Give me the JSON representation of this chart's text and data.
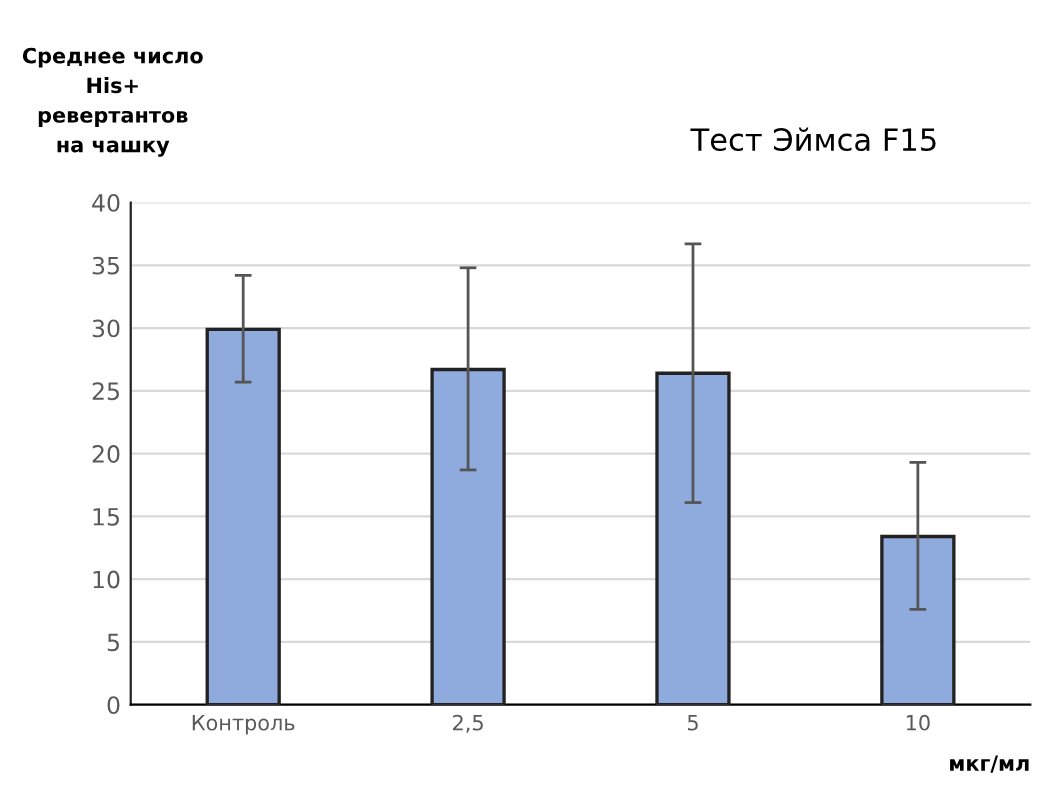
{
  "chart_data": {
    "type": "bar",
    "title": "Тест Эймса F15",
    "ylabel": "Среднее число\nHis+\nревертантов\nна чашку",
    "xlabel": "мкг/мл",
    "categories": [
      "Контроль",
      "2,5",
      "5",
      "10"
    ],
    "values": [
      29.9,
      26.7,
      26.4,
      13.4
    ],
    "errors": [
      [
        25.7,
        34.2
      ],
      [
        18.7,
        34.8
      ],
      [
        16.1,
        36.7
      ],
      [
        7.6,
        19.3
      ]
    ],
    "color": "#8faadc",
    "ylim": [
      0,
      40
    ],
    "yticks": [
      0,
      5,
      10,
      15,
      20,
      25,
      30,
      35,
      40
    ],
    "grid": "y",
    "legend": false
  }
}
